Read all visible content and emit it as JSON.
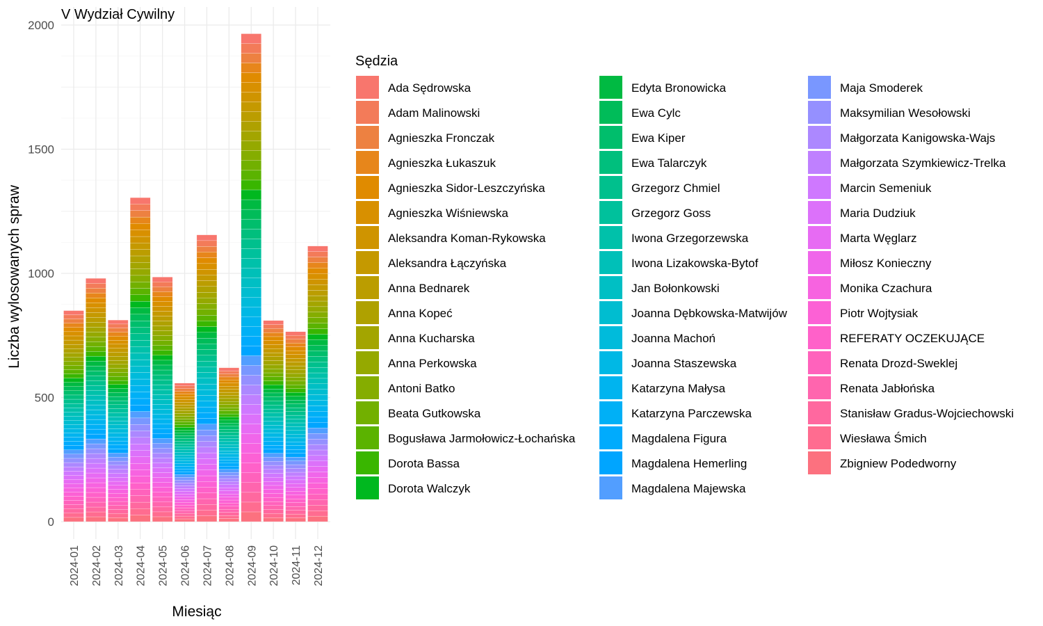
{
  "chart_data": {
    "type": "bar",
    "stacked": true,
    "title": "V Wydział Cywilny",
    "xlabel": "Miesiąc",
    "ylabel": "Liczba wylosowanych spraw",
    "ylim": [
      0,
      2000
    ],
    "y_ticks": [
      0,
      500,
      1000,
      1500,
      2000
    ],
    "grid": true,
    "legend_position": "right",
    "legend_title": "Sędzia",
    "categories": [
      "2024-01",
      "2024-02",
      "2024-03",
      "2024-04",
      "2024-05",
      "2024-06",
      "2024-07",
      "2024-08",
      "2024-09",
      "2024-10",
      "2024-11",
      "2024-12"
    ],
    "totals": [
      850,
      980,
      812,
      1305,
      985,
      558,
      1155,
      620,
      1965,
      810,
      765,
      1110
    ],
    "series": [
      {
        "name": "Ada Sędrowska",
        "color": "#F8766D"
      },
      {
        "name": "Adam Malinowski",
        "color": "#F37B59"
      },
      {
        "name": "Agnieszka Fronczak",
        "color": "#ED8141"
      },
      {
        "name": "Agnieszka Łukaszuk",
        "color": "#E7861B"
      },
      {
        "name": "Agnieszka Sidor-Leszczyńska",
        "color": "#E08B00"
      },
      {
        "name": "Agnieszka Wiśniewska",
        "color": "#D89000"
      },
      {
        "name": "Aleksandra Koman-Rykowska",
        "color": "#CF9400"
      },
      {
        "name": "Aleksandra Łączyńska",
        "color": "#C59900"
      },
      {
        "name": "Anna Bednarek",
        "color": "#BB9D00"
      },
      {
        "name": "Anna Kopeć",
        "color": "#AFA100"
      },
      {
        "name": "Anna Kucharska",
        "color": "#A3A500"
      },
      {
        "name": "Anna Perkowska",
        "color": "#95A900"
      },
      {
        "name": "Antoni Batko",
        "color": "#85AD00"
      },
      {
        "name": "Beata Gutkowska",
        "color": "#72B000"
      },
      {
        "name": "Bogusława Jarmołowicz-Łochańska",
        "color": "#5BB300"
      },
      {
        "name": "Dorota Bassa",
        "color": "#39B600"
      },
      {
        "name": "Dorota Walczyk",
        "color": "#00B81F"
      },
      {
        "name": "Edyta Bronowicka",
        "color": "#00BA42"
      },
      {
        "name": "Ewa Cylc",
        "color": "#00BC59"
      },
      {
        "name": "Ewa Kiper",
        "color": "#00BE6C"
      },
      {
        "name": "Ewa Talarczyk",
        "color": "#00BF7D"
      },
      {
        "name": "Grzegorz Chmiel",
        "color": "#00C08D"
      },
      {
        "name": "Grzegorz Goss",
        "color": "#00C19C"
      },
      {
        "name": "Iwona Grzegorzewska",
        "color": "#00C1AA"
      },
      {
        "name": "Iwona Lizakowska-Bytof",
        "color": "#00C0B8"
      },
      {
        "name": "Jan Bołonkowski",
        "color": "#00BFC4"
      },
      {
        "name": "Joanna Dębkowska-Matwijów",
        "color": "#00BDD0"
      },
      {
        "name": "Joanna Machoń",
        "color": "#00BBDB"
      },
      {
        "name": "Joanna Staszewska",
        "color": "#00B8E5"
      },
      {
        "name": "Katarzyna Małysa",
        "color": "#00B4EF"
      },
      {
        "name": "Katarzyna Parczewska",
        "color": "#00B0F6"
      },
      {
        "name": "Magdalena Figura",
        "color": "#00ABFD"
      },
      {
        "name": "Magdalena Hemerling",
        "color": "#00A5FF"
      },
      {
        "name": "Magdalena Majewska",
        "color": "#529EFF"
      },
      {
        "name": "Maja Smoderek",
        "color": "#7997FF"
      },
      {
        "name": "Maksymilian Wesołowski",
        "color": "#9590FF"
      },
      {
        "name": "Małgorzata Kanigowska-Wajs",
        "color": "#AC88FF"
      },
      {
        "name": "Małgorzata Szymkiewicz-Trelka",
        "color": "#BF80FF"
      },
      {
        "name": "Marcin Semeniuk",
        "color": "#CF78FF"
      },
      {
        "name": "Maria Dudziuk",
        "color": "#DC71FA"
      },
      {
        "name": "Marta Węglarz",
        "color": "#E76BF3"
      },
      {
        "name": "Miłosz Konieczny",
        "color": "#F066EA"
      },
      {
        "name": "Monika Czachura",
        "color": "#F763E0"
      },
      {
        "name": "Piotr Wojtysiak",
        "color": "#FC61D5"
      },
      {
        "name": "REFERATY OCZEKUJĄCE",
        "color": "#FF61C9"
      },
      {
        "name": "Renata Drozd-Sweklej",
        "color": "#FF62BC"
      },
      {
        "name": "Renata Jabłońska",
        "color": "#FF65AE"
      },
      {
        "name": "Stanisław Gradus-Wojciechowski",
        "color": "#FF689F"
      },
      {
        "name": "Wiesława Śmich",
        "color": "#FF6C90"
      },
      {
        "name": "Zbigniew Podedworny",
        "color": "#FC717F"
      }
    ]
  }
}
